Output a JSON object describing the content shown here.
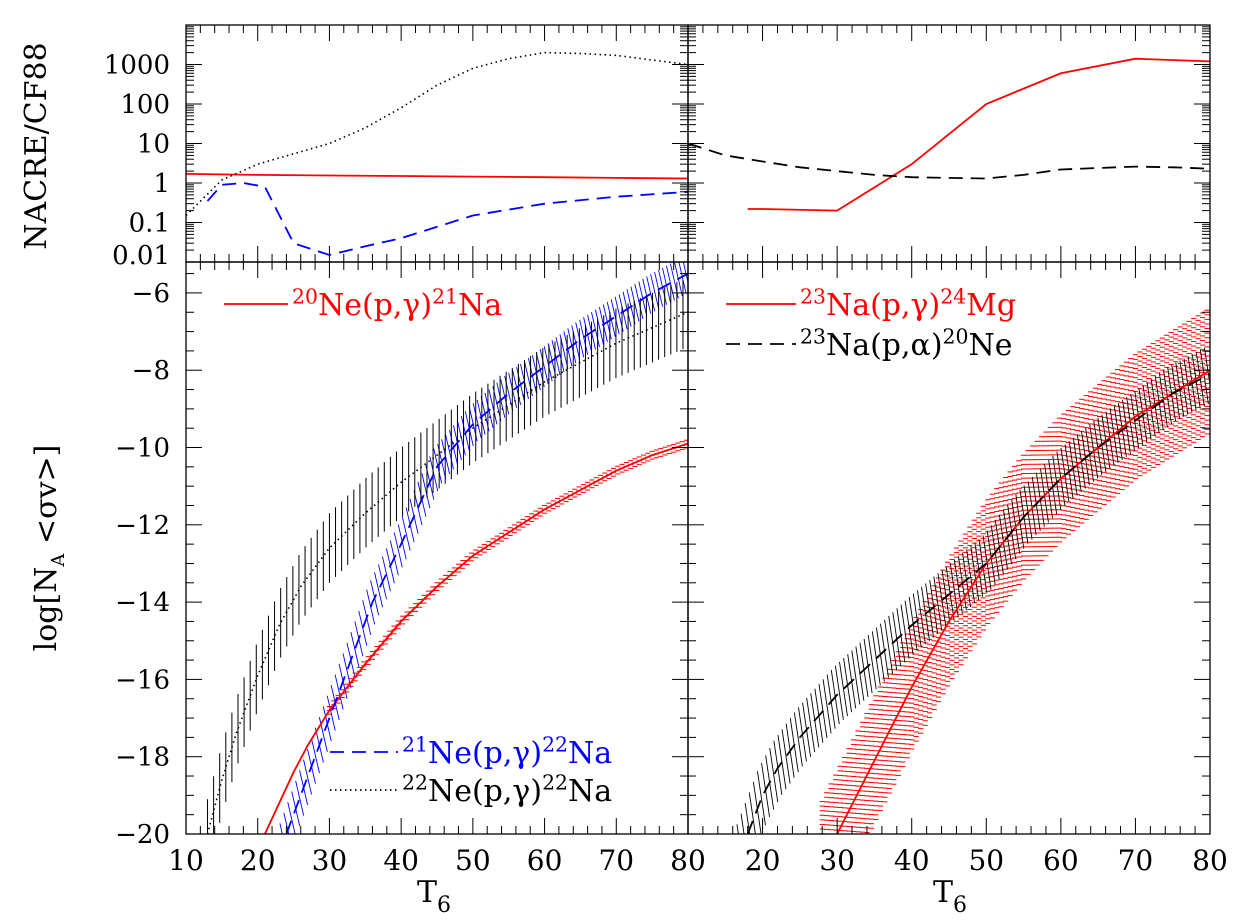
{
  "colors": {
    "red": "#ff0000",
    "blue": "#0000ff",
    "black": "#000000"
  },
  "chart_data": [
    {
      "id": "ratio-left",
      "type": "line",
      "ylabel": "NACRE/CF88",
      "yscale": "log",
      "xlim": [
        10,
        80
      ],
      "ylim": [
        0.01,
        10000
      ],
      "yticks": [
        "0.01",
        "0.1",
        "1",
        "10",
        "100",
        "1000"
      ],
      "series": [
        {
          "name": "20Ne(p,γ)21Na",
          "color": "red",
          "style": "solid",
          "x": [
            10,
            20,
            30,
            40,
            50,
            60,
            70,
            80
          ],
          "y": [
            1.7,
            1.6,
            1.55,
            1.5,
            1.45,
            1.4,
            1.35,
            1.3
          ]
        },
        {
          "name": "21Ne(p,γ)22Na",
          "color": "blue",
          "style": "dashed",
          "x": [
            13,
            15,
            18,
            21,
            25,
            30,
            35,
            40,
            50,
            60,
            70,
            80
          ],
          "y": [
            0.35,
            0.9,
            1.0,
            0.8,
            0.03,
            0.015,
            0.025,
            0.04,
            0.15,
            0.3,
            0.45,
            0.6
          ]
        },
        {
          "name": "22Ne(p,γ)22Na",
          "color": "black",
          "style": "dotted",
          "x": [
            10,
            15,
            20,
            25,
            30,
            35,
            40,
            45,
            50,
            55,
            60,
            65,
            70,
            75,
            80
          ],
          "y": [
            0.15,
            1.2,
            3.0,
            5.5,
            10,
            25,
            80,
            300,
            800,
            1400,
            2000,
            1900,
            1700,
            1300,
            1000
          ]
        }
      ]
    },
    {
      "id": "ratio-right",
      "type": "line",
      "yscale": "log",
      "xlim": [
        10,
        80
      ],
      "ylim": [
        0.01,
        10000
      ],
      "series": [
        {
          "name": "23Na(p,γ)24Mg",
          "color": "red",
          "style": "solid",
          "x": [
            18,
            20,
            30,
            40,
            50,
            60,
            70,
            80
          ],
          "y": [
            0.22,
            0.22,
            0.2,
            3.0,
            100,
            600,
            1400,
            1200
          ]
        },
        {
          "name": "23Na(p,α)20Ne",
          "color": "black",
          "style": "dashed",
          "x": [
            10,
            15,
            20,
            25,
            30,
            35,
            40,
            45,
            50,
            55,
            60,
            65,
            70,
            75,
            80
          ],
          "y": [
            10,
            5,
            3.5,
            2.5,
            2.0,
            1.6,
            1.4,
            1.35,
            1.3,
            1.6,
            2.2,
            2.4,
            2.6,
            2.5,
            2.3
          ]
        }
      ]
    },
    {
      "id": "rate-left",
      "type": "line",
      "ylabel": "log[N_A <σv>]",
      "xlabel": "T_6",
      "xlim": [
        10,
        80
      ],
      "ylim": [
        -20,
        -5.2
      ],
      "xticks": [
        "10",
        "20",
        "30",
        "40",
        "50",
        "60",
        "70",
        "80"
      ],
      "yticks": [
        "−20",
        "−18",
        "−16",
        "−14",
        "−12",
        "−10",
        "−8",
        "−6"
      ],
      "series": [
        {
          "name": "20Ne(p,γ)21Na",
          "color": "red",
          "style": "solid",
          "x": [
            21,
            23,
            25,
            27,
            30,
            35,
            40,
            45,
            50,
            55,
            60,
            65,
            70,
            75,
            80
          ],
          "y": [
            -20.0,
            -19.2,
            -18.4,
            -17.7,
            -16.8,
            -15.6,
            -14.5,
            -13.6,
            -12.8,
            -12.2,
            -11.6,
            -11.1,
            -10.6,
            -10.2,
            -9.9
          ],
          "band": 0.1,
          "hatch": "horizontal",
          "hatch_from": 30
        },
        {
          "name": "21Ne(p,γ)22Na",
          "color": "blue",
          "style": "dashed",
          "x": [
            24,
            26,
            28,
            30,
            33,
            36,
            40,
            45,
            50,
            55,
            60,
            65,
            70,
            75,
            80
          ],
          "y": [
            -20.0,
            -19.0,
            -18.0,
            -17.0,
            -15.5,
            -14.0,
            -12.5,
            -10.5,
            -9.4,
            -8.6,
            -7.9,
            -7.2,
            -6.6,
            -6.0,
            -5.5
          ],
          "band": 0.45,
          "hatch": "diagonal",
          "hatch_from": 22
        },
        {
          "name": "22Ne(p,γ)22Na",
          "color": "black",
          "style": "dotted",
          "x": [
            13,
            15,
            17,
            20,
            23,
            26,
            30,
            35,
            40,
            45,
            50,
            55,
            60,
            65,
            70,
            75,
            80
          ],
          "y": [
            -20.0,
            -18.6,
            -17.4,
            -15.9,
            -14.6,
            -13.6,
            -12.6,
            -11.7,
            -10.9,
            -10.2,
            -9.5,
            -8.9,
            -8.3,
            -7.8,
            -7.3,
            -6.9,
            -6.5
          ],
          "band": 0.9,
          "hatch": "vertical",
          "hatch_from": 13
        }
      ],
      "legend": [
        {
          "parts": [
            [
              "sup",
              "20"
            ],
            [
              "t",
              "Ne(p,"
            ],
            [
              "g",
              "γ"
            ],
            [
              "t",
              ")"
            ],
            [
              "sup",
              "21"
            ],
            [
              "t",
              "Na"
            ]
          ],
          "color": "red",
          "style": "solid",
          "location": "top-left"
        },
        {
          "parts": [
            [
              "sup",
              "21"
            ],
            [
              "t",
              "Ne(p,"
            ],
            [
              "g",
              "γ"
            ],
            [
              "t",
              ")"
            ],
            [
              "sup",
              "22"
            ],
            [
              "t",
              "Na"
            ]
          ],
          "color": "blue",
          "style": "dashed",
          "location": "bottom-right"
        },
        {
          "parts": [
            [
              "sup",
              "22"
            ],
            [
              "t",
              "Ne(p,"
            ],
            [
              "g",
              "γ"
            ],
            [
              "t",
              ")"
            ],
            [
              "sup",
              "22"
            ],
            [
              "t",
              "Na"
            ]
          ],
          "color": "black",
          "style": "dotted",
          "location": "bottom-right"
        }
      ]
    },
    {
      "id": "rate-right",
      "type": "line",
      "xlabel": "T_6",
      "xlim": [
        10,
        80
      ],
      "ylim": [
        -20,
        -5.2
      ],
      "xticks": [
        "20",
        "30",
        "40",
        "50",
        "60",
        "70",
        "80"
      ],
      "series": [
        {
          "name": "23Na(p,γ)24Mg",
          "color": "red",
          "style": "solid",
          "x": [
            30,
            35,
            40,
            45,
            50,
            55,
            60,
            65,
            70,
            75,
            80
          ],
          "y": [
            -20.0,
            -18.1,
            -16.2,
            -14.5,
            -13.0,
            -11.8,
            -10.8,
            -10.0,
            -9.2,
            -8.6,
            -8.0
          ],
          "band": 1.6,
          "hatch": "horizontal",
          "hatch_from": 28
        },
        {
          "name": "23Na(p,α)20Ne",
          "color": "black",
          "style": "dashed",
          "x": [
            18,
            20,
            22,
            25,
            30,
            35,
            40,
            45,
            50,
            55,
            60,
            65,
            70,
            75,
            80
          ],
          "y": [
            -20.0,
            -19.0,
            -18.3,
            -17.5,
            -16.4,
            -15.5,
            -14.6,
            -13.8,
            -13.0,
            -11.8,
            -10.8,
            -10.0,
            -9.3,
            -8.6,
            -8.1
          ],
          "band": 0.7,
          "hatch": "diagonal",
          "hatch_from": 16
        }
      ],
      "legend": [
        {
          "parts": [
            [
              "sup",
              "23"
            ],
            [
              "t",
              "Na(p,"
            ],
            [
              "g",
              "γ"
            ],
            [
              "t",
              ")"
            ],
            [
              "sup",
              "24"
            ],
            [
              "t",
              "Mg"
            ]
          ],
          "color": "red",
          "style": "solid",
          "location": "top-left"
        },
        {
          "parts": [
            [
              "sup",
              "23"
            ],
            [
              "t",
              "Na(p,"
            ],
            [
              "g",
              "α"
            ],
            [
              "t",
              ")"
            ],
            [
              "sup",
              "20"
            ],
            [
              "t",
              "Ne"
            ]
          ],
          "color": "black",
          "style": "dashed",
          "location": "top-left"
        }
      ]
    }
  ]
}
